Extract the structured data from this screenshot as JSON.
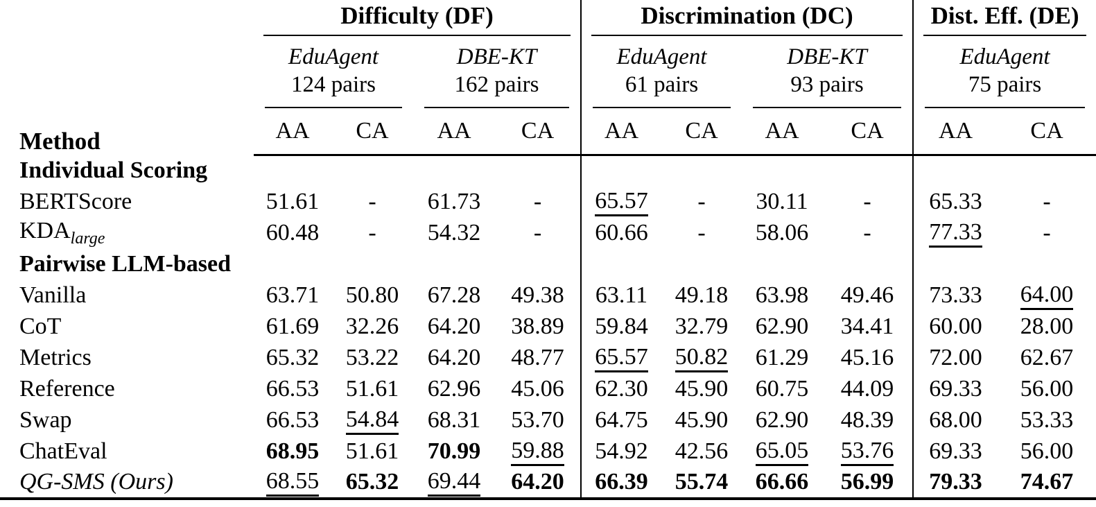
{
  "table": {
    "method_header": "Method",
    "groups": [
      {
        "label": "Difficulty (DF)",
        "datasets": [
          {
            "name": "EduAgent",
            "pairs": "124 pairs"
          },
          {
            "name": "DBE-KT",
            "pairs": "162 pairs"
          }
        ]
      },
      {
        "label": "Discrimination (DC)",
        "datasets": [
          {
            "name": "EduAgent",
            "pairs": "61 pairs"
          },
          {
            "name": "DBE-KT",
            "pairs": "93 pairs"
          }
        ]
      },
      {
        "label": "Dist. Eff. (DE)",
        "datasets": [
          {
            "name": "EduAgent",
            "pairs": "75 pairs"
          }
        ]
      }
    ],
    "subcols": [
      "AA",
      "CA"
    ],
    "rows": [
      {
        "type": "section",
        "label": "Individual Scoring"
      },
      {
        "type": "data",
        "method": "BERTScore",
        "cells": [
          {
            "v": "51.61"
          },
          {
            "v": "-"
          },
          {
            "v": "61.73"
          },
          {
            "v": "-"
          },
          {
            "v": "65.57",
            "u": 1
          },
          {
            "v": "-"
          },
          {
            "v": "30.11"
          },
          {
            "v": "-"
          },
          {
            "v": "65.33"
          },
          {
            "v": "-"
          }
        ]
      },
      {
        "type": "data",
        "method": "KDA",
        "sub": "large",
        "cells": [
          {
            "v": "60.48"
          },
          {
            "v": "-"
          },
          {
            "v": "54.32"
          },
          {
            "v": "-"
          },
          {
            "v": "60.66"
          },
          {
            "v": "-"
          },
          {
            "v": "58.06"
          },
          {
            "v": "-"
          },
          {
            "v": "77.33",
            "u": 1
          },
          {
            "v": "-"
          }
        ]
      },
      {
        "type": "section",
        "label": "Pairwise LLM-based"
      },
      {
        "type": "data",
        "method": "Vanilla",
        "cells": [
          {
            "v": "63.71"
          },
          {
            "v": "50.80"
          },
          {
            "v": "67.28"
          },
          {
            "v": "49.38"
          },
          {
            "v": "63.11"
          },
          {
            "v": "49.18"
          },
          {
            "v": "63.98"
          },
          {
            "v": "49.46"
          },
          {
            "v": "73.33"
          },
          {
            "v": "64.00",
            "u": 1
          }
        ]
      },
      {
        "type": "data",
        "method": "CoT",
        "cells": [
          {
            "v": "61.69"
          },
          {
            "v": "32.26"
          },
          {
            "v": "64.20"
          },
          {
            "v": "38.89"
          },
          {
            "v": "59.84"
          },
          {
            "v": "32.79"
          },
          {
            "v": "62.90"
          },
          {
            "v": "34.41"
          },
          {
            "v": "60.00"
          },
          {
            "v": "28.00"
          }
        ]
      },
      {
        "type": "data",
        "method": "Metrics",
        "cells": [
          {
            "v": "65.32"
          },
          {
            "v": "53.22"
          },
          {
            "v": "64.20"
          },
          {
            "v": "48.77"
          },
          {
            "v": "65.57",
            "u": 1
          },
          {
            "v": "50.82",
            "u": 1
          },
          {
            "v": "61.29"
          },
          {
            "v": "45.16"
          },
          {
            "v": "72.00"
          },
          {
            "v": "62.67"
          }
        ]
      },
      {
        "type": "data",
        "method": "Reference",
        "cells": [
          {
            "v": "66.53"
          },
          {
            "v": "51.61"
          },
          {
            "v": "62.96"
          },
          {
            "v": "45.06"
          },
          {
            "v": "62.30"
          },
          {
            "v": "45.90"
          },
          {
            "v": "60.75"
          },
          {
            "v": "44.09"
          },
          {
            "v": "69.33"
          },
          {
            "v": "56.00"
          }
        ]
      },
      {
        "type": "data",
        "method": "Swap",
        "cells": [
          {
            "v": "66.53"
          },
          {
            "v": "54.84",
            "u": 1
          },
          {
            "v": "68.31"
          },
          {
            "v": "53.70"
          },
          {
            "v": "64.75"
          },
          {
            "v": "45.90"
          },
          {
            "v": "62.90"
          },
          {
            "v": "48.39"
          },
          {
            "v": "68.00"
          },
          {
            "v": "53.33"
          }
        ]
      },
      {
        "type": "data",
        "method": "ChatEval",
        "cells": [
          {
            "v": "68.95",
            "b": 1
          },
          {
            "v": "51.61"
          },
          {
            "v": "70.99",
            "b": 1
          },
          {
            "v": "59.88",
            "u": 1
          },
          {
            "v": "54.92"
          },
          {
            "v": "42.56"
          },
          {
            "v": "65.05",
            "u": 1
          },
          {
            "v": "53.76",
            "u": 1
          },
          {
            "v": "69.33"
          },
          {
            "v": "56.00"
          }
        ]
      },
      {
        "type": "data",
        "method": "QG-SMS (Ours)",
        "italic": 1,
        "cells": [
          {
            "v": "68.55",
            "u": 1
          },
          {
            "v": "65.32",
            "b": 1
          },
          {
            "v": "69.44",
            "u": 1
          },
          {
            "v": "64.20",
            "b": 1
          },
          {
            "v": "66.39",
            "b": 1
          },
          {
            "v": "55.74",
            "b": 1
          },
          {
            "v": "66.66",
            "b": 1
          },
          {
            "v": "56.99",
            "b": 1
          },
          {
            "v": "79.33",
            "b": 1
          },
          {
            "v": "74.67",
            "b": 1
          }
        ]
      }
    ]
  }
}
